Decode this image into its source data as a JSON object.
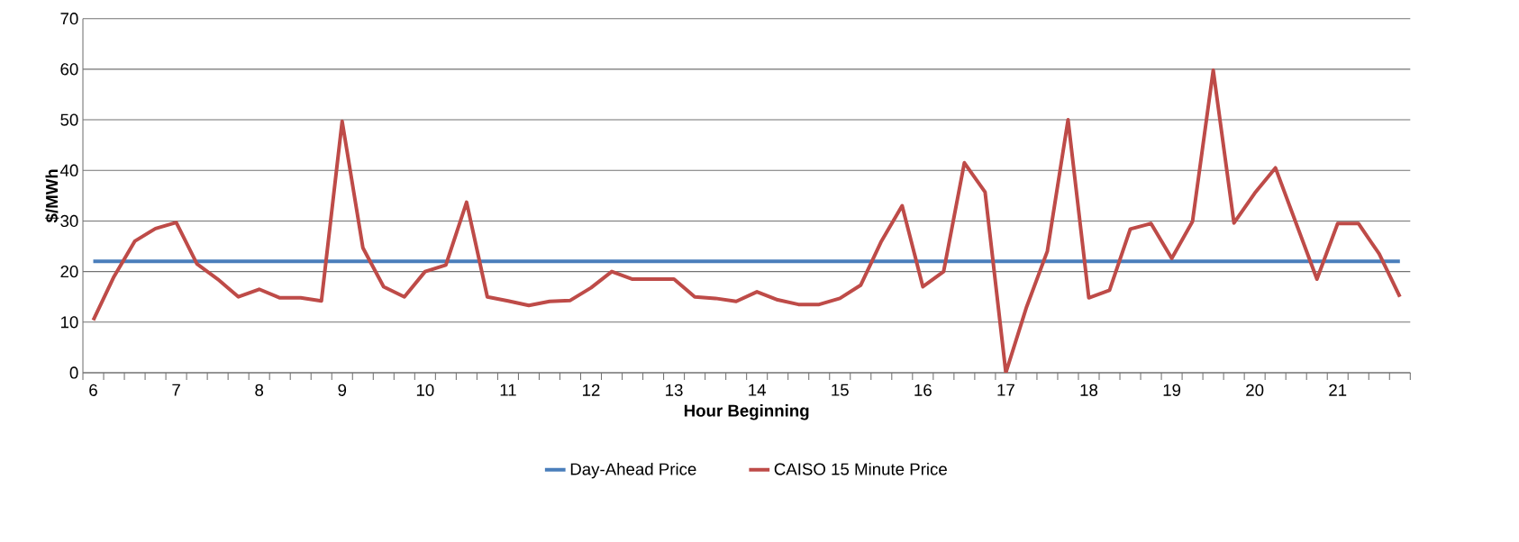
{
  "chart_data": {
    "type": "line",
    "xlabel": "Hour Beginning",
    "ylabel": "$/MWh",
    "categories": [
      "6",
      null,
      null,
      null,
      "7",
      null,
      null,
      null,
      "8",
      null,
      null,
      null,
      "9",
      null,
      null,
      null,
      "10",
      null,
      null,
      null,
      "11",
      null,
      null,
      null,
      "12",
      null,
      null,
      null,
      "13",
      null,
      null,
      null,
      "14",
      null,
      null,
      null,
      "15",
      null,
      null,
      null,
      "16",
      null,
      null,
      null,
      "17",
      null,
      null,
      null,
      "18",
      null,
      null,
      null,
      "19",
      null,
      null,
      null,
      "20",
      null,
      null,
      null,
      "21",
      null,
      null,
      null
    ],
    "series": [
      {
        "name": "Day-Ahead Price",
        "color": "#4a7ebb",
        "values": [
          22,
          22,
          22,
          22,
          22,
          22,
          22,
          22,
          22,
          22,
          22,
          22,
          22,
          22,
          22,
          22,
          22,
          22,
          22,
          22,
          22,
          22,
          22,
          22,
          22,
          22,
          22,
          22,
          22,
          22,
          22,
          22,
          22,
          22,
          22,
          22,
          22,
          22,
          22,
          22,
          22,
          22,
          22,
          22,
          22,
          22,
          22,
          22,
          22,
          22,
          22,
          22,
          22,
          22,
          22,
          22,
          22,
          22,
          22,
          22,
          22,
          22,
          22,
          22
        ]
      },
      {
        "name": "CAISO 15 Minute Price",
        "color": "#be4b48",
        "values": [
          10.4,
          19,
          26,
          28.5,
          29.7,
          21.5,
          18.5,
          15,
          16.5,
          14.8,
          14.8,
          14.2,
          49.7,
          24.7,
          17,
          15,
          20,
          21.3,
          33.7,
          15,
          14.2,
          13.3,
          14.1,
          14.3,
          16.8,
          20,
          18.5,
          18.5,
          18.5,
          15,
          14.7,
          14.1,
          16,
          14.4,
          13.5,
          13.5,
          14.7,
          17.3,
          26,
          33,
          17,
          20,
          41.5,
          35.7,
          0,
          13,
          24,
          50,
          14.8,
          16.3,
          28.4,
          29.5,
          22.6,
          29.9,
          59.8,
          29.6,
          35.5,
          40.5,
          29.5,
          18.5,
          29.5,
          29.5,
          23.5,
          15
        ]
      }
    ],
    "ylim": [
      0,
      70
    ],
    "yticks": [
      0,
      10,
      20,
      30,
      40,
      50,
      60,
      70
    ],
    "grid": "y",
    "legend": "bottom"
  }
}
